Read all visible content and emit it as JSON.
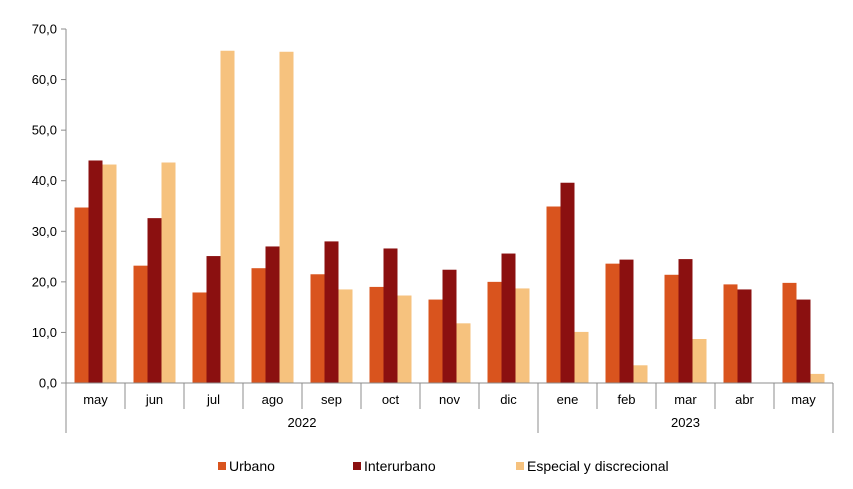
{
  "chart_data": {
    "type": "bar",
    "categories": [
      "may",
      "jun",
      "jul",
      "ago",
      "sep",
      "oct",
      "nov",
      "dic",
      "ene",
      "feb",
      "mar",
      "abr",
      "may"
    ],
    "groups": [
      {
        "label": "2022",
        "from": 0,
        "to": 7
      },
      {
        "label": "2023",
        "from": 8,
        "to": 12
      }
    ],
    "series": [
      {
        "name": "Urbano",
        "color": "#D9541E",
        "values": [
          34.7,
          23.2,
          17.9,
          22.7,
          21.5,
          19.0,
          16.5,
          20.0,
          34.9,
          23.6,
          21.4,
          19.5,
          19.8
        ]
      },
      {
        "name": "Interurbano",
        "color": "#8B1010",
        "values": [
          44.0,
          32.6,
          25.1,
          27.0,
          28.0,
          26.6,
          22.4,
          25.6,
          39.6,
          24.4,
          24.5,
          18.5,
          16.5
        ]
      },
      {
        "name": "Especial y discrecional",
        "color": "#F6C27E",
        "values": [
          43.2,
          43.6,
          65.7,
          65.5,
          18.5,
          17.3,
          11.8,
          18.7,
          10.1,
          3.5,
          8.7,
          0.0,
          1.8
        ]
      }
    ],
    "yticks": [
      "0,0",
      "10,0",
      "20,0",
      "30,0",
      "40,0",
      "50,0",
      "60,0",
      "70,0"
    ],
    "ylim": [
      0,
      70
    ],
    "grid": false,
    "legend_position": "bottom"
  }
}
